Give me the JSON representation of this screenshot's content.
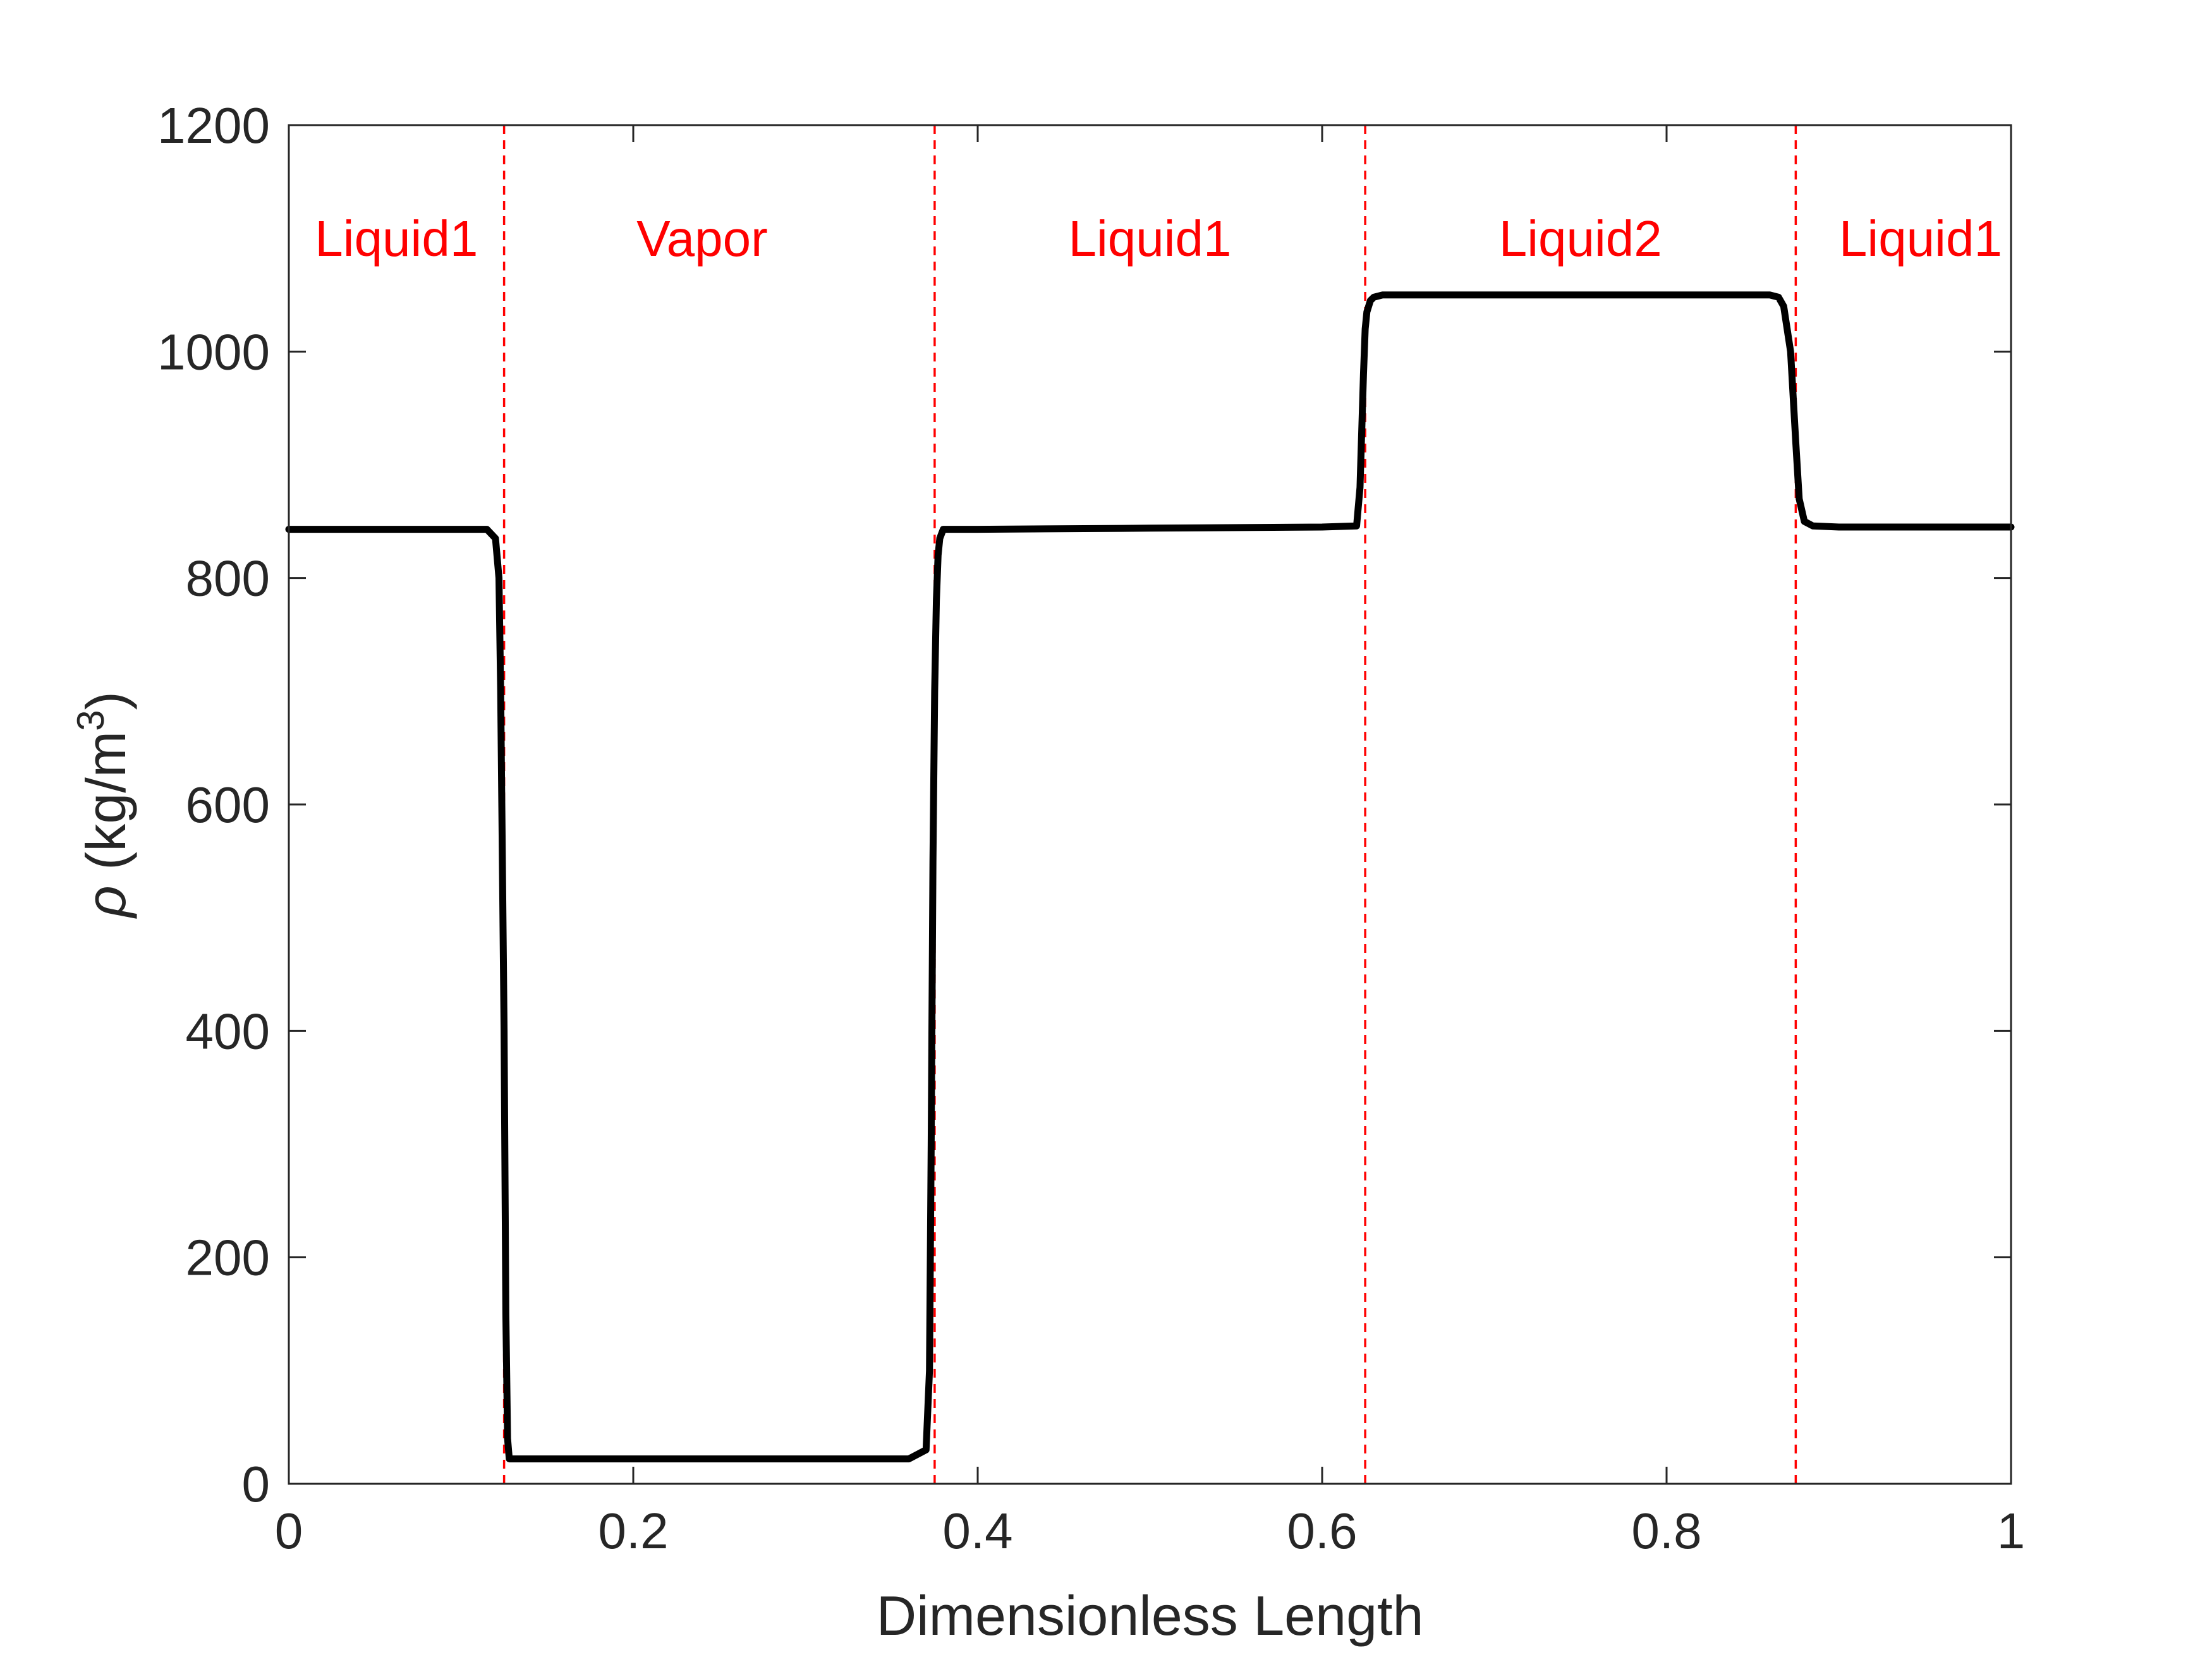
{
  "chart_data": {
    "type": "line",
    "title": "",
    "xlabel": "Dimensionless Length",
    "ylabel": {
      "symbol": "ρ",
      "unit_pre": " (kg/m",
      "unit_sup": "3",
      "unit_post": ")"
    },
    "xlim": [
      0,
      1
    ],
    "ylim": [
      0,
      1200
    ],
    "xticks": [
      0,
      0.2,
      0.4,
      0.6,
      0.8,
      1
    ],
    "xtick_labels": [
      "0",
      "0.2",
      "0.4",
      "0.6",
      "0.8",
      "1"
    ],
    "yticks": [
      0,
      200,
      400,
      600,
      800,
      1000,
      1200
    ],
    "ytick_labels": [
      "0",
      "200",
      "400",
      "600",
      "800",
      "1000",
      "1200"
    ],
    "grid": false,
    "legend": "none",
    "series": [
      {
        "color": "#000000",
        "x": [
          0,
          0.05,
          0.1,
          0.115,
          0.12,
          0.122,
          0.123,
          0.124,
          0.125,
          0.126,
          0.127,
          0.128,
          0.13,
          0.14,
          0.2,
          0.3,
          0.36,
          0.37,
          0.372,
          0.373,
          0.374,
          0.375,
          0.376,
          0.377,
          0.378,
          0.38,
          0.385,
          0.4,
          0.5,
          0.6,
          0.62,
          0.622,
          0.624,
          0.625,
          0.626,
          0.628,
          0.63,
          0.635,
          0.64,
          0.7,
          0.8,
          0.86,
          0.865,
          0.868,
          0.872,
          0.875,
          0.877,
          0.88,
          0.885,
          0.9,
          1
        ],
        "y": [
          843,
          843,
          843,
          843,
          835,
          800,
          700,
          550,
          400,
          150,
          40,
          22,
          22,
          22,
          22,
          22,
          22,
          30,
          100,
          300,
          550,
          700,
          780,
          820,
          835,
          843,
          843,
          843,
          844,
          845,
          846,
          880,
          980,
          1020,
          1035,
          1045,
          1048,
          1050,
          1050,
          1050,
          1050,
          1050,
          1048,
          1040,
          1000,
          920,
          870,
          850,
          846,
          845,
          845
        ]
      }
    ],
    "boundaries": {
      "x": [
        0.125,
        0.375,
        0.625,
        0.875
      ],
      "color": "#ff0000",
      "style": "dashed"
    },
    "annotations": [
      {
        "text": "Liquid1",
        "x": 0.0625,
        "y": 1100,
        "color": "#ff0000"
      },
      {
        "text": "Vapor",
        "x": 0.24,
        "y": 1100,
        "color": "#ff0000"
      },
      {
        "text": "Liquid1",
        "x": 0.5,
        "y": 1100,
        "color": "#ff0000"
      },
      {
        "text": "Liquid2",
        "x": 0.75,
        "y": 1100,
        "color": "#ff0000"
      },
      {
        "text": "Liquid1",
        "x": 0.9475,
        "y": 1100,
        "color": "#ff0000"
      }
    ]
  }
}
